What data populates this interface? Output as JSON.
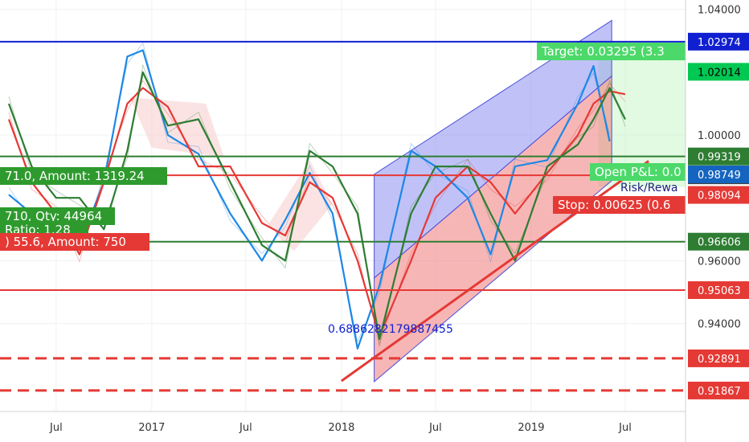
{
  "chart_data": {
    "type": "line",
    "y_range": [
      0.912,
      1.043
    ],
    "y_ticks": [
      {
        "label": "1.04000",
        "value": 1.04
      },
      {
        "label": "1.00000",
        "value": 1.0
      },
      {
        "label": "0.96000",
        "value": 0.96
      },
      {
        "label": "0.94000",
        "value": 0.94
      }
    ],
    "x_ticks": [
      {
        "label": "Jul",
        "date": "2016-07-01"
      },
      {
        "label": "2017",
        "date": "2017-01-01"
      },
      {
        "label": "Jul",
        "date": "2017-07-01"
      },
      {
        "label": "2018",
        "date": "2018-01-01"
      },
      {
        "label": "Jul",
        "date": "2018-07-01"
      },
      {
        "label": "2019",
        "date": "2019-01-01"
      },
      {
        "label": "Jul",
        "date": "2019-07-01"
      }
    ],
    "horizontal_levels": [
      {
        "value": 1.02974,
        "label": "1.02974",
        "color": "#1020d0",
        "style": "solid",
        "badge_bg": "#1020d0"
      },
      {
        "value": 0.99319,
        "label": "0.99319",
        "color": "#2e7d32",
        "style": "solid",
        "badge_bg": "#2e7d32"
      },
      {
        "value": 0.98719,
        "label": "0.98719",
        "color": "#e53935",
        "style": "solid",
        "badge_bg": "#424242"
      },
      {
        "value": 0.96606,
        "label": "0.96606",
        "color": "#2e7d32",
        "style": "solid",
        "badge_bg": "#2e7d32"
      },
      {
        "value": 0.95063,
        "label": "0.95063",
        "color": "#e53935",
        "style": "solid",
        "badge_bg": "#e53935"
      },
      {
        "value": 0.92891,
        "label": "0.92891",
        "color": "#e53935",
        "style": "dashed",
        "badge_bg": "#e53935"
      },
      {
        "value": 0.91867,
        "label": "0.91867",
        "color": "#e53935",
        "style": "dashed",
        "badge_bg": "#e53935"
      }
    ],
    "extra_price_badges": [
      {
        "value": 1.02014,
        "label": "1.02014",
        "bg": "#00c853",
        "fg": "#000000"
      },
      {
        "value": 0.98749,
        "label": "0.98749",
        "bg": "#1565c0",
        "fg": "#ffffff"
      },
      {
        "value": 0.98094,
        "label": "0.98094",
        "bg": "#e53935",
        "fg": "#ffffff"
      }
    ],
    "text_annotations": [
      {
        "id": "target",
        "text": "Target: 0.03295 (3.3"
      },
      {
        "id": "amount-1319",
        "text": "71.0, Amount: 1319.24"
      },
      {
        "id": "qty-44964",
        "text": "710, Qty: 44964"
      },
      {
        "id": "ratio",
        "text": "Ratio: 1.28"
      },
      {
        "id": "amount-750",
        "text": ") 55.6, Amount: 750"
      },
      {
        "id": "open-pnl",
        "text": "Open P&L: 0.0"
      },
      {
        "id": "risk-reward",
        "text": "Risk/Rewa"
      },
      {
        "id": "stop",
        "text": "Stop: 0.00625 (0.6"
      },
      {
        "id": "fib-value",
        "text": "0.6886282179887455"
      }
    ],
    "channel": {
      "lower_start": {
        "date": "2018-03-05",
        "value": 0.9215
      },
      "lower_end": {
        "date": "2019-08-01",
        "value": 0.9875
      },
      "upper_start": {
        "date": "2018-03-05",
        "value": 0.9875
      },
      "upper_end": {
        "date": "2019-06-05",
        "value": 1.0365
      }
    },
    "trend_line": {
      "start": {
        "date": "2018-01-01",
        "value": 0.9217
      },
      "end": {
        "date": "2019-08-15",
        "value": 0.9917
      }
    },
    "series": [
      {
        "color": "#1e88e5",
        "points": [
          [
            "2016-04-01",
            0.981
          ],
          [
            "2016-05-15",
            0.975
          ],
          [
            "2016-07-01",
            0.97
          ],
          [
            "2016-08-15",
            0.965
          ],
          [
            "2016-10-01",
            0.985
          ],
          [
            "2016-11-15",
            1.025
          ],
          [
            "2016-12-15",
            1.027
          ],
          [
            "2017-02-01",
            1.0
          ],
          [
            "2017-04-01",
            0.994
          ],
          [
            "2017-06-01",
            0.975
          ],
          [
            "2017-08-01",
            0.96
          ],
          [
            "2017-09-15",
            0.973
          ],
          [
            "2017-11-01",
            0.988
          ],
          [
            "2017-12-15",
            0.975
          ],
          [
            "2018-02-01",
            0.932
          ],
          [
            "2018-03-15",
            0.952
          ],
          [
            "2018-05-15",
            0.995
          ],
          [
            "2018-07-01",
            0.99
          ],
          [
            "2018-09-01",
            0.98
          ],
          [
            "2018-10-15",
            0.962
          ],
          [
            "2018-12-01",
            0.99
          ],
          [
            "2019-02-01",
            0.992
          ],
          [
            "2019-04-01",
            1.01
          ],
          [
            "2019-05-01",
            1.022
          ],
          [
            "2019-06-01",
            0.998
          ]
        ]
      },
      {
        "color": "#e53935",
        "points": [
          [
            "2016-04-01",
            1.005
          ],
          [
            "2016-05-15",
            0.985
          ],
          [
            "2016-07-01",
            0.975
          ],
          [
            "2016-08-15",
            0.962
          ],
          [
            "2016-10-01",
            0.985
          ],
          [
            "2016-11-15",
            1.01
          ],
          [
            "2016-12-15",
            1.015
          ],
          [
            "2017-02-01",
            1.009
          ],
          [
            "2017-04-01",
            0.99
          ],
          [
            "2017-06-01",
            0.99
          ],
          [
            "2017-08-01",
            0.972
          ],
          [
            "2017-09-15",
            0.968
          ],
          [
            "2017-11-01",
            0.985
          ],
          [
            "2017-12-15",
            0.98
          ],
          [
            "2018-02-01",
            0.96
          ],
          [
            "2018-03-15",
            0.936
          ],
          [
            "2018-05-15",
            0.96
          ],
          [
            "2018-07-01",
            0.98
          ],
          [
            "2018-09-01",
            0.99
          ],
          [
            "2018-10-15",
            0.985
          ],
          [
            "2018-12-01",
            0.975
          ],
          [
            "2019-02-01",
            0.988
          ],
          [
            "2019-04-01",
            1.0
          ],
          [
            "2019-05-01",
            1.01
          ],
          [
            "2019-06-01",
            1.014
          ],
          [
            "2019-07-01",
            1.013
          ]
        ]
      },
      {
        "color": "#2e7d32",
        "points": [
          [
            "2016-04-01",
            1.01
          ],
          [
            "2016-05-15",
            0.99
          ],
          [
            "2016-07-01",
            0.98
          ],
          [
            "2016-08-15",
            0.98
          ],
          [
            "2016-10-01",
            0.97
          ],
          [
            "2016-11-15",
            0.995
          ],
          [
            "2016-12-15",
            1.02
          ],
          [
            "2017-02-01",
            1.003
          ],
          [
            "2017-04-01",
            1.005
          ],
          [
            "2017-06-01",
            0.985
          ],
          [
            "2017-08-01",
            0.965
          ],
          [
            "2017-09-15",
            0.96
          ],
          [
            "2017-11-01",
            0.995
          ],
          [
            "2017-12-15",
            0.99
          ],
          [
            "2018-02-01",
            0.975
          ],
          [
            "2018-03-15",
            0.935
          ],
          [
            "2018-05-15",
            0.975
          ],
          [
            "2018-07-01",
            0.99
          ],
          [
            "2018-09-01",
            0.99
          ],
          [
            "2018-10-15",
            0.975
          ],
          [
            "2018-12-01",
            0.96
          ],
          [
            "2019-02-01",
            0.99
          ],
          [
            "2019-04-01",
            0.997
          ],
          [
            "2019-05-01",
            1.005
          ],
          [
            "2019-06-01",
            1.015
          ],
          [
            "2019-07-01",
            1.005
          ]
        ]
      }
    ]
  }
}
